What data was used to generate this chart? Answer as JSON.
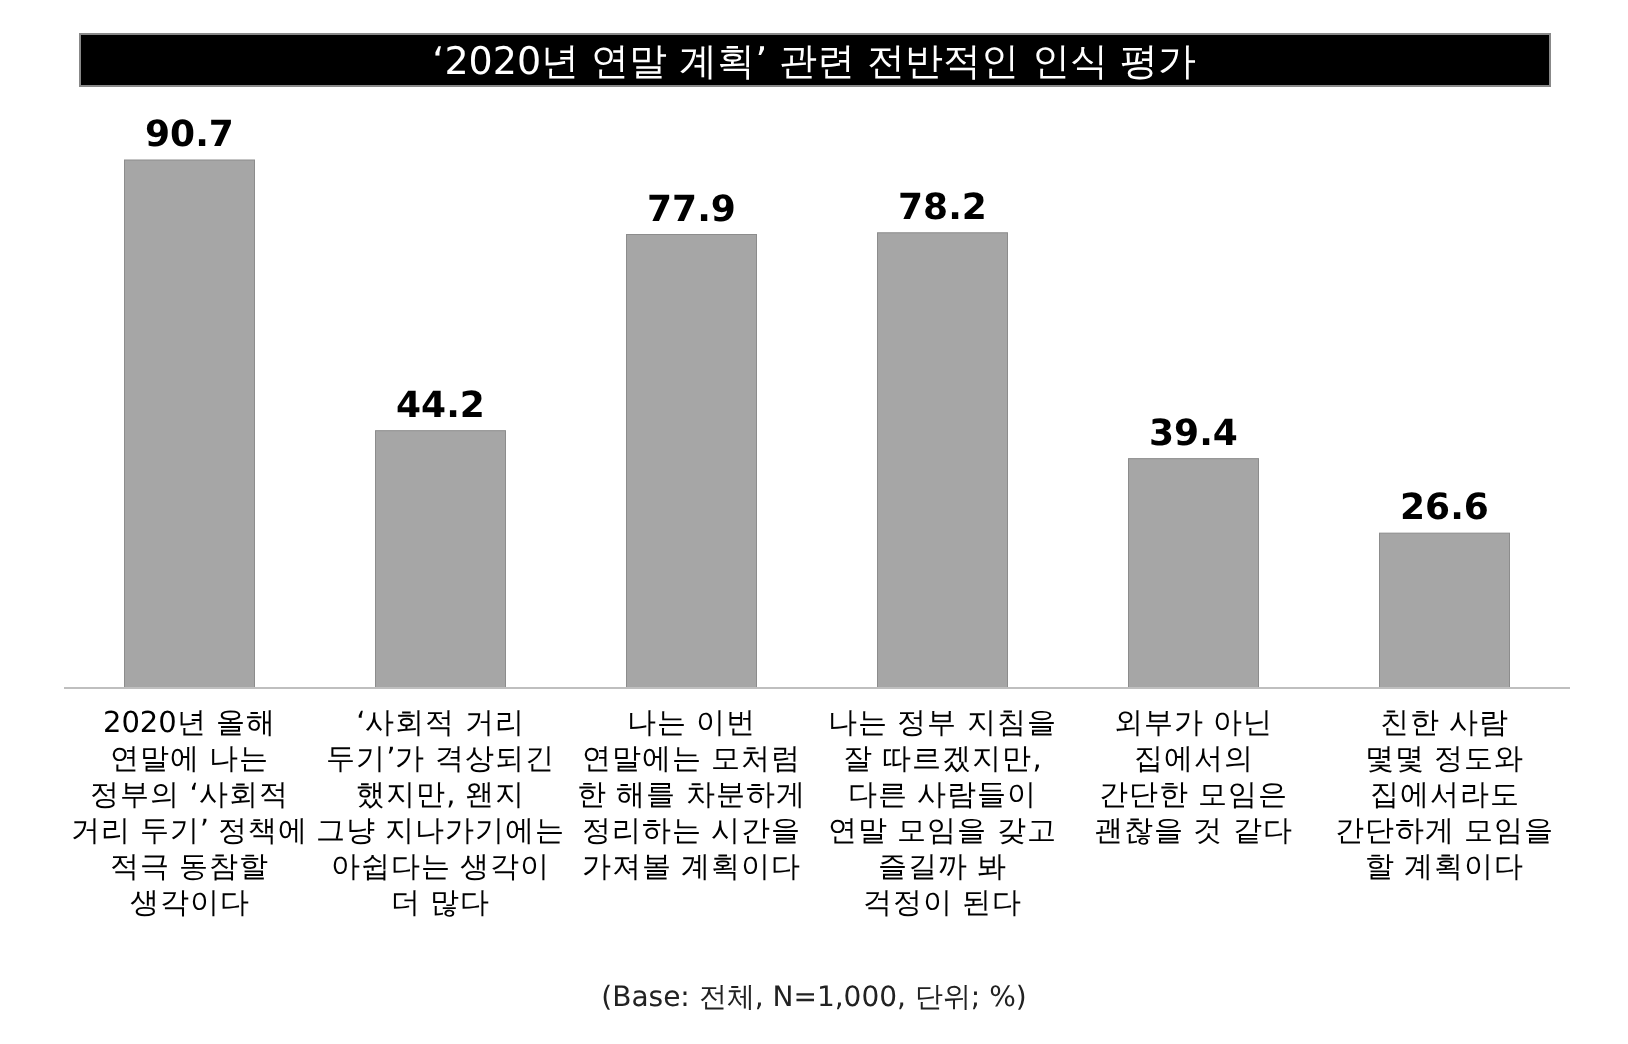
{
  "chart_data": {
    "type": "bar",
    "title": "‘2020년 연말 계획’ 관련 전반적인 인식 평가",
    "categories": [
      "2020년 올해\n연말에 나는\n정부의 ‘사회적\n거리 두기’ 정책에\n적극 동참할\n생각이다",
      "‘사회적 거리\n두기’가 격상되긴\n했지만, 왠지\n그냥 지나가기에는\n아쉽다는 생각이\n더 많다",
      "나는 이번\n연말에는 모처럼\n한 해를 차분하게\n정리하는 시간을\n가져볼 계획이다",
      "나는 정부 지침을\n잘 따르겠지만,\n다른 사람들이\n연말 모임을 갖고\n즐길까 봐\n걱정이 된다",
      "외부가 아닌\n집에서의\n간단한 모임은\n괜찮을 것 같다",
      "친한 사람\n몇몇 정도와\n집에서라도\n간단하게 모임을\n할 계획이다"
    ],
    "values": [
      90.7,
      44.2,
      77.9,
      78.2,
      39.4,
      26.6
    ],
    "color": "#a6a6a6",
    "data_labels": true,
    "annotations": [
      "(Base: 전체, N=1,000, 단위; %)"
    ]
  }
}
